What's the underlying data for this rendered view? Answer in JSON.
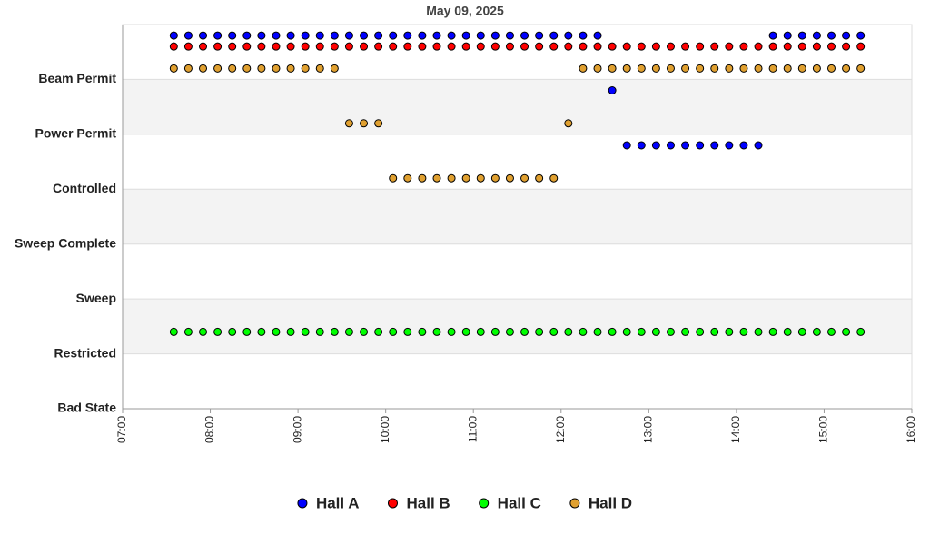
{
  "chart_data": {
    "type": "scatter",
    "title": "May 09, 2025",
    "x": [
      "07:35",
      "07:45",
      "07:55",
      "08:05",
      "08:15",
      "08:25",
      "08:35",
      "08:45",
      "08:55",
      "09:05",
      "09:15",
      "09:25",
      "09:35",
      "09:45",
      "09:55",
      "10:05",
      "10:15",
      "10:25",
      "10:35",
      "10:45",
      "10:55",
      "11:05",
      "11:15",
      "11:25",
      "11:35",
      "11:45",
      "11:55",
      "12:05",
      "12:15",
      "12:25",
      "12:35",
      "12:45",
      "12:55",
      "13:05",
      "13:15",
      "13:25",
      "13:35",
      "13:45",
      "13:55",
      "14:05",
      "14:15",
      "14:25",
      "14:35",
      "14:45",
      "14:55",
      "15:05",
      "15:15",
      "15:25"
    ],
    "series": [
      {
        "name": "Hall A",
        "color": "#0000ff",
        "values": [
          6.8,
          6.8,
          6.8,
          6.8,
          6.8,
          6.8,
          6.8,
          6.8,
          6.8,
          6.8,
          6.8,
          6.8,
          6.8,
          6.8,
          6.8,
          6.8,
          6.8,
          6.8,
          6.8,
          6.8,
          6.8,
          6.8,
          6.8,
          6.8,
          6.8,
          6.8,
          6.8,
          6.8,
          6.8,
          6.8,
          5.8,
          4.8,
          4.8,
          4.8,
          4.8,
          4.8,
          4.8,
          4.8,
          4.8,
          4.8,
          4.8,
          6.8,
          6.8,
          6.8,
          6.8,
          6.8,
          6.8,
          6.8
        ]
      },
      {
        "name": "Hall B",
        "color": "#ff0000",
        "values": [
          6.6,
          6.6,
          6.6,
          6.6,
          6.6,
          6.6,
          6.6,
          6.6,
          6.6,
          6.6,
          6.6,
          6.6,
          6.6,
          6.6,
          6.6,
          6.6,
          6.6,
          6.6,
          6.6,
          6.6,
          6.6,
          6.6,
          6.6,
          6.6,
          6.6,
          6.6,
          6.6,
          6.6,
          6.6,
          6.6,
          6.6,
          6.6,
          6.6,
          6.6,
          6.6,
          6.6,
          6.6,
          6.6,
          6.6,
          6.6,
          6.6,
          6.6,
          6.6,
          6.6,
          6.6,
          6.6,
          6.6,
          6.6
        ]
      },
      {
        "name": "Hall C",
        "color": "#00ff00",
        "values": [
          1.4,
          1.4,
          1.4,
          1.4,
          1.4,
          1.4,
          1.4,
          1.4,
          1.4,
          1.4,
          1.4,
          1.4,
          1.4,
          1.4,
          1.4,
          1.4,
          1.4,
          1.4,
          1.4,
          1.4,
          1.4,
          1.4,
          1.4,
          1.4,
          1.4,
          1.4,
          1.4,
          1.4,
          1.4,
          1.4,
          1.4,
          1.4,
          1.4,
          1.4,
          1.4,
          1.4,
          1.4,
          1.4,
          1.4,
          1.4,
          1.4,
          1.4,
          1.4,
          1.4,
          1.4,
          1.4,
          1.4,
          1.4
        ]
      },
      {
        "name": "Hall D",
        "color": "#e0a030",
        "values": [
          6.2,
          6.2,
          6.2,
          6.2,
          6.2,
          6.2,
          6.2,
          6.2,
          6.2,
          6.2,
          6.2,
          6.2,
          5.2,
          5.2,
          5.2,
          4.2,
          4.2,
          4.2,
          4.2,
          4.2,
          4.2,
          4.2,
          4.2,
          4.2,
          4.2,
          4.2,
          4.2,
          5.2,
          6.2,
          6.2,
          6.2,
          6.2,
          6.2,
          6.2,
          6.2,
          6.2,
          6.2,
          6.2,
          6.2,
          6.2,
          6.2,
          6.2,
          6.2,
          6.2,
          6.2,
          6.2,
          6.2,
          6.2
        ]
      }
    ],
    "xlim": [
      "07:00",
      "16:00"
    ],
    "xticks": [
      "07:00",
      "08:00",
      "09:00",
      "10:00",
      "11:00",
      "12:00",
      "13:00",
      "14:00",
      "15:00",
      "16:00"
    ],
    "ylim": [
      0,
      7
    ],
    "yticks": [
      {
        "value": 0,
        "label": "Bad State"
      },
      {
        "value": 1,
        "label": "Restricted"
      },
      {
        "value": 2,
        "label": "Sweep"
      },
      {
        "value": 3,
        "label": "Sweep Complete"
      },
      {
        "value": 4,
        "label": "Controlled"
      },
      {
        "value": 5,
        "label": "Power Permit"
      },
      {
        "value": 6,
        "label": "Beam Permit"
      }
    ],
    "legend": "bottom"
  }
}
